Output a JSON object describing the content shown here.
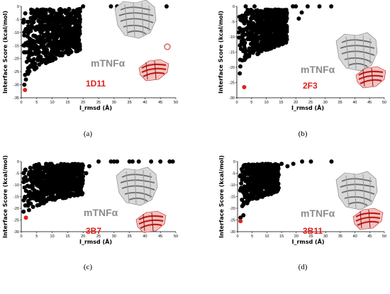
{
  "colors": {
    "decoy": "#000000",
    "native": "#e0201b",
    "protein_label": "#8c8c8c"
  },
  "chart_data": [
    {
      "type": "scatter",
      "caption": "(a)",
      "protein_label": "mTNFα",
      "complex_label": "1D11",
      "xlabel": "I_rmsd (Å)",
      "ylabel": "Interface Score (kcal/mol)",
      "xlim": [
        0,
        50
      ],
      "ylim": [
        -35,
        0
      ],
      "xticks": [
        0,
        5,
        10,
        15,
        20,
        25,
        30,
        35,
        40,
        45,
        50
      ],
      "yticks": [
        0,
        -5,
        -10,
        -15,
        -20,
        -25,
        -30,
        -35
      ],
      "native": {
        "x": 1.2,
        "y": -32
      },
      "decoy_shape": {
        "x_max": 19,
        "top_y": -1,
        "bottom_near": -30,
        "bottom_far": -17,
        "count": 650
      },
      "outliers": [
        [
          20,
          0
        ],
        [
          29,
          0
        ],
        [
          31,
          0
        ],
        [
          36,
          0
        ],
        [
          47,
          0
        ],
        [
          1,
          -30
        ],
        [
          2,
          -25
        ],
        [
          1.5,
          -28
        ]
      ]
    },
    {
      "type": "scatter",
      "caption": "(b)",
      "protein_label": "mTNFα",
      "complex_label": "2F3",
      "xlabel": "I_rmsd (Å)",
      "ylabel": "Interface Score (kcal/mol)",
      "xlim": [
        0,
        50
      ],
      "ylim": [
        -30,
        0
      ],
      "xticks": [
        0,
        5,
        10,
        15,
        20,
        25,
        30,
        35,
        40,
        45,
        50
      ],
      "yticks": [
        0,
        -5,
        -10,
        -15,
        -20,
        -25,
        -30
      ],
      "native": {
        "x": 2.5,
        "y": -26.5
      },
      "decoy_shape": {
        "x_max": 17,
        "top_y": -1,
        "bottom_near": -22,
        "bottom_far": -12,
        "count": 650
      },
      "outliers": [
        [
          3,
          0
        ],
        [
          6,
          0
        ],
        [
          19,
          0
        ],
        [
          20,
          0
        ],
        [
          24,
          0
        ],
        [
          28,
          0
        ],
        [
          32,
          0
        ],
        [
          1,
          -22
        ],
        [
          21,
          -4
        ],
        [
          22,
          -2
        ]
      ]
    },
    {
      "type": "scatter",
      "caption": "(c)",
      "protein_label": "mTNFα",
      "complex_label": "3B7",
      "xlabel": "I_rmsd (Å)",
      "ylabel": "Interface Score (kcal/mol)",
      "xlim": [
        0,
        50
      ],
      "ylim": [
        -30,
        0
      ],
      "xticks": [
        0,
        5,
        10,
        15,
        20,
        25,
        30,
        35,
        40,
        45,
        50
      ],
      "yticks": [
        0,
        -5,
        -10,
        -15,
        -20,
        -25,
        -30
      ],
      "native": {
        "x": 1.5,
        "y": -24
      },
      "decoy_shape": {
        "x_max": 20,
        "top_y": -1,
        "bottom_near": -24,
        "bottom_far": -14,
        "count": 650
      },
      "outliers": [
        [
          25,
          0
        ],
        [
          29,
          0
        ],
        [
          30,
          0
        ],
        [
          31,
          0
        ],
        [
          35,
          0
        ],
        [
          36,
          0
        ],
        [
          38,
          0
        ],
        [
          42,
          0
        ],
        [
          45,
          0
        ],
        [
          48,
          0
        ],
        [
          49,
          0
        ],
        [
          22,
          -2
        ],
        [
          21,
          -5
        ]
      ]
    },
    {
      "type": "scatter",
      "caption": "(d)",
      "protein_label": "mTNFα",
      "complex_label": "3B11",
      "xlabel": "I_rmsd (Å)",
      "ylabel": "Interface Score (kcal/mol)",
      "xlim": [
        0,
        50
      ],
      "ylim": [
        -30,
        0
      ],
      "xticks": [
        0,
        5,
        10,
        15,
        20,
        25,
        30,
        35,
        40,
        45,
        50
      ],
      "yticks": [
        0,
        -5,
        -10,
        -15,
        -20,
        -25,
        -30
      ],
      "native": {
        "x": 1,
        "y": -25.5
      },
      "decoy_shape": {
        "x_max": 14,
        "top_y": -1,
        "bottom_near": -22,
        "bottom_far": -13,
        "count": 550
      },
      "outliers": [
        [
          15,
          -1
        ],
        [
          17,
          -2
        ],
        [
          19,
          -1
        ],
        [
          22,
          0
        ],
        [
          25,
          0
        ],
        [
          32,
          0
        ],
        [
          1,
          -24
        ],
        [
          2,
          -23
        ]
      ]
    }
  ]
}
